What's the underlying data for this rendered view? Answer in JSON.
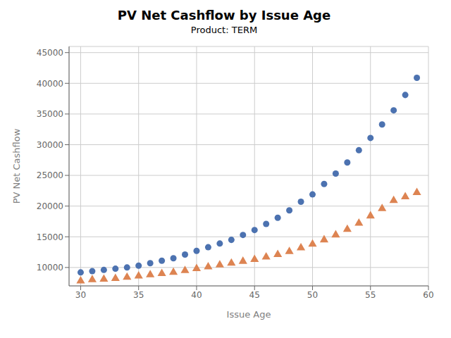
{
  "chart_data": {
    "type": "scatter",
    "title": "PV Net Cashflow by Issue Age",
    "subtitle": "Product: TERM",
    "xlabel": "Issue Age",
    "ylabel": "PV Net Cashflow",
    "x": [
      30,
      31,
      32,
      33,
      34,
      35,
      36,
      37,
      38,
      39,
      40,
      41,
      42,
      43,
      44,
      45,
      46,
      47,
      48,
      49,
      50,
      51,
      52,
      53,
      54,
      55,
      56,
      57,
      58,
      59
    ],
    "series": [
      {
        "color": "#4c72b0",
        "marker": "circle",
        "values": [
          9200,
          9400,
          9600,
          9800,
          10000,
          10300,
          10700,
          11100,
          11500,
          12100,
          12700,
          13300,
          13900,
          14500,
          15300,
          16100,
          17100,
          18100,
          19300,
          20700,
          21900,
          23600,
          25300,
          27100,
          29100,
          31100,
          33300,
          35600,
          38100,
          40900
        ]
      },
      {
        "color": "#dd8452",
        "marker": "triangle",
        "values": [
          7800,
          8000,
          8100,
          8200,
          8400,
          8600,
          8800,
          9000,
          9200,
          9500,
          9800,
          10100,
          10400,
          10700,
          11000,
          11300,
          11700,
          12100,
          12600,
          13200,
          13800,
          14500,
          15300,
          16200,
          17200,
          18400,
          19600,
          20900,
          21500,
          22200
        ]
      }
    ],
    "xlim": [
      29,
      60
    ],
    "ylim": [
      7000,
      46000
    ],
    "xticks": [
      30,
      35,
      40,
      45,
      50,
      55,
      60
    ],
    "yticks": [
      10000,
      15000,
      20000,
      25000,
      30000,
      35000,
      40000,
      45000
    ],
    "grid": true
  }
}
